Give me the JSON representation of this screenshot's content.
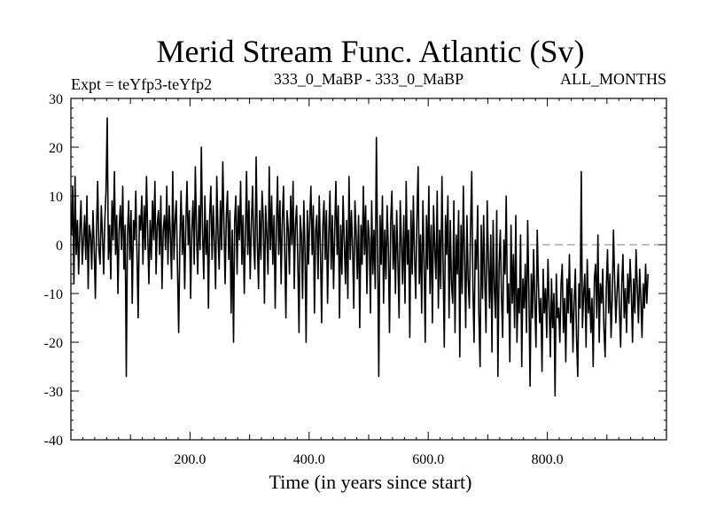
{
  "chart_data": {
    "type": "line",
    "title": "Merid Stream Func. Atlantic (Sv)",
    "subtitle_left": "Expt = teYfp3-teYfp2",
    "subtitle_center": "333_0_MaBP - 333_0_MaBP",
    "subtitle_right": "ALL_MONTHS",
    "xlabel": "Time (in years since start)",
    "ylabel": "",
    "xlim": [
      0,
      1000
    ],
    "ylim": [
      -40,
      30
    ],
    "xticks": [
      200,
      400,
      600,
      800
    ],
    "xtick_labels": [
      "200.0",
      "400.0",
      "600.0",
      "800.0"
    ],
    "yticks": [
      30,
      20,
      10,
      0,
      -10,
      -20,
      -30,
      -40
    ],
    "ytick_labels": [
      "30",
      "20",
      "10",
      "0",
      "-10",
      "-20",
      "-30",
      "-40"
    ],
    "reference_line": 0,
    "series": [
      {
        "name": "teYfp3-teYfp2",
        "sampling": "one value every 2 years, 500 samples; estimated from the plot",
        "color": "#000000",
        "x_start": 1,
        "x_step": 2,
        "values": [
          2,
          12,
          -8,
          14,
          -2,
          5,
          -6,
          3,
          9,
          -4,
          1,
          6,
          -3,
          10,
          -9,
          4,
          2,
          -5,
          7,
          0,
          -11,
          3,
          13,
          -1,
          -4,
          8,
          2,
          -6,
          5,
          11,
          26,
          -3,
          4,
          -7,
          9,
          1,
          15,
          -2,
          6,
          -10,
          3,
          8,
          -1,
          12,
          -5,
          4,
          -27,
          2,
          9,
          -3,
          7,
          -12,
          5,
          1,
          11,
          -2,
          -15,
          6,
          3,
          10,
          -4,
          8,
          -1,
          14,
          2,
          -8,
          5,
          -3,
          9,
          1,
          13,
          -6,
          4,
          7,
          -2,
          10,
          -9,
          3,
          6,
          -1,
          12,
          -4,
          8,
          2,
          -7,
          15,
          -3,
          5,
          9,
          -5,
          -18,
          1,
          11,
          -2,
          6,
          -9,
          4,
          13,
          0,
          7,
          -11,
          3,
          9,
          -4,
          16,
          2,
          -6,
          8,
          -1,
          20,
          3,
          -7,
          10,
          -2,
          5,
          -13,
          6,
          12,
          -3,
          8,
          0,
          -9,
          14,
          2,
          -5,
          9,
          -1,
          17,
          4,
          -8,
          6,
          11,
          -3,
          7,
          -14,
          3,
          -20,
          5,
          10,
          -6,
          8,
          1,
          13,
          -4,
          6,
          -10,
          2,
          15,
          -2,
          9,
          -7,
          4,
          12,
          0,
          -5,
          18,
          1,
          -9,
          7,
          -3,
          11,
          5,
          -12,
          8,
          2,
          -6,
          16,
          -1,
          10,
          -4,
          6,
          -13,
          3,
          14,
          -2,
          9,
          -8,
          5,
          12,
          -1,
          -15,
          7,
          3,
          -6,
          10,
          0,
          13,
          -9,
          4,
          8,
          -3,
          -18,
          6,
          2,
          -11,
          9,
          -1,
          -20,
          7,
          -4,
          5,
          12,
          -2,
          8,
          -14,
          3,
          6,
          -7,
          10,
          -1,
          -16,
          4,
          9,
          -3,
          7,
          -12,
          2,
          11,
          -5,
          6,
          -9,
          3,
          13,
          -2,
          8,
          -15,
          4,
          -6,
          10,
          1,
          -8,
          5,
          -11,
          14,
          -3,
          7,
          -1,
          -13,
          9,
          2,
          -7,
          6,
          -17,
          4,
          -4,
          12,
          -2,
          8,
          -10,
          5,
          1,
          -14,
          9,
          -6,
          3,
          -9,
          22,
          -2,
          -27,
          6,
          -4,
          10,
          -12,
          3,
          -7,
          8,
          -1,
          -18,
          5,
          11,
          -5,
          4,
          -10,
          7,
          -3,
          -15,
          9,
          0,
          -8,
          6,
          -12,
          13,
          -4,
          3,
          -19,
          7,
          -6,
          10,
          -2,
          -11,
          5,
          16,
          -8,
          2,
          -14,
          9,
          -3,
          -20,
          6,
          -5,
          12,
          -10,
          4,
          -16,
          8,
          -1,
          -7,
          11,
          -13,
          3,
          -9,
          14,
          -4,
          -21,
          6,
          -2,
          10,
          -15,
          5,
          -8,
          -12,
          9,
          -18,
          2,
          -6,
          7,
          -23,
          4,
          -10,
          12,
          -3,
          -17,
          6,
          -7,
          -13,
          3,
          15,
          -9,
          -20,
          1,
          -5,
          8,
          -14,
          -25,
          4,
          -11,
          6,
          -7,
          -18,
          9,
          -3,
          -13,
          2,
          -22,
          5,
          -9,
          -15,
          7,
          -27,
          -4,
          3,
          -11,
          -19,
          1,
          -6,
          10,
          -14,
          -8,
          -24,
          4,
          -12,
          -2,
          -17,
          6,
          -20,
          -9,
          -14,
          2,
          -25,
          -7,
          -13,
          -4,
          -18,
          5,
          -10,
          -29,
          -6,
          -15,
          -1,
          -12,
          -21,
          3,
          -8,
          -16,
          -11,
          -26,
          -5,
          -14,
          -9,
          -19,
          -3,
          -12,
          -23,
          -7,
          -17,
          -10,
          -31,
          -6,
          -15,
          -13,
          -20,
          -8,
          -4,
          -18,
          -11,
          -24,
          -7,
          -14,
          -2,
          -16,
          -9,
          -22,
          -12,
          -5,
          -19,
          -27,
          -8,
          -13,
          15,
          -17,
          -10,
          -6,
          -21,
          -3,
          -14,
          -9,
          -18,
          -11,
          -25,
          -7,
          -4,
          -15,
          2,
          -20,
          -8,
          -12,
          -5,
          -17,
          -23,
          -9,
          -1,
          -14,
          -6,
          -19,
          -11,
          3,
          -7,
          -16,
          -10,
          -4,
          -13,
          -21,
          -8,
          -2,
          -15,
          -9,
          -18,
          -6,
          -12,
          -3,
          -10,
          -20,
          -7,
          -14,
          -1,
          -9,
          -16,
          -5,
          -11,
          -19,
          -8,
          -13,
          -4,
          -12,
          -6
        ]
      }
    ]
  }
}
